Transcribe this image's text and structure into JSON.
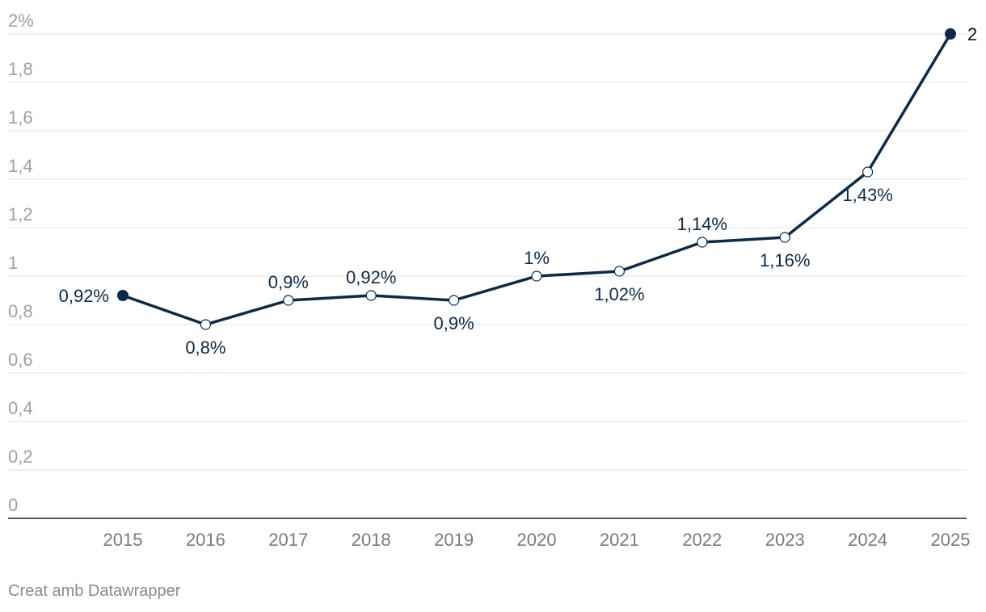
{
  "chart_data": {
    "type": "line",
    "title": "",
    "xlabel": "",
    "ylabel": "",
    "categories": [
      "2015",
      "2016",
      "2017",
      "2018",
      "2019",
      "2020",
      "2021",
      "2022",
      "2023",
      "2024",
      "2025"
    ],
    "series": [
      {
        "name": "",
        "values": [
          0.92,
          0.8,
          0.9,
          0.92,
          0.9,
          1.0,
          1.02,
          1.14,
          1.16,
          1.43,
          2.0
        ]
      }
    ],
    "data_labels": [
      "0,92%",
      "0,8%",
      "0,9%",
      "0,92%",
      "0,9%",
      "1%",
      "1,02%",
      "1,14%",
      "1,16%",
      "1,43%",
      "2"
    ],
    "label_positions": [
      "left",
      "below",
      "above",
      "above",
      "below",
      "above",
      "below",
      "above",
      "below",
      "below",
      "right"
    ],
    "ylim": [
      0,
      2
    ],
    "y_ticks": [
      0,
      0.2,
      0.4,
      0.6,
      0.8,
      1,
      1.2,
      1.4,
      1.6,
      1.8,
      2
    ],
    "y_tick_labels": [
      "0",
      "0,2",
      "0,4",
      "0,6",
      "0,8",
      "1",
      "1,2",
      "1,4",
      "1,6",
      "1,8",
      "2%"
    ],
    "grid": true,
    "line_color": "#0b2a4a"
  },
  "footer": {
    "credit": "Creat amb Datawrapper"
  }
}
